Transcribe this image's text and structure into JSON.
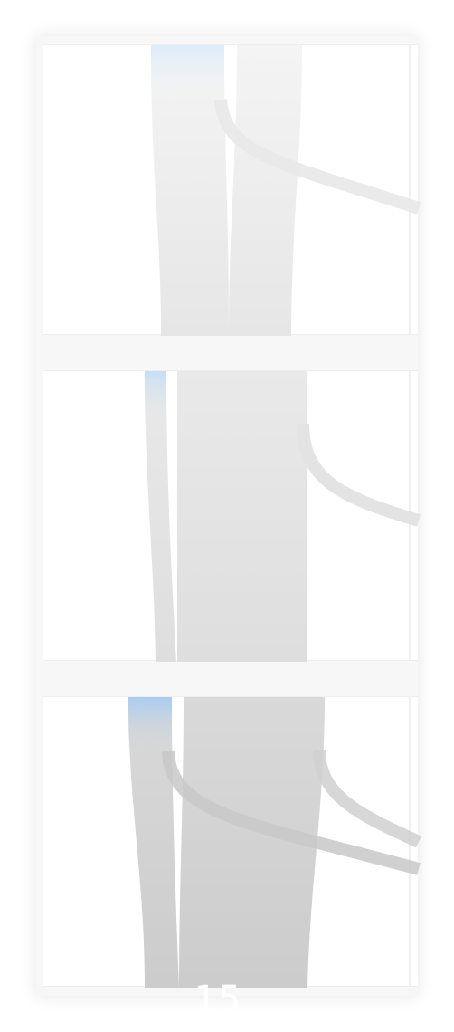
{
  "page": {
    "number": "15"
  },
  "colors": {
    "flow_grey": "#d4d4d4",
    "flow_light": "#efefef",
    "highlight_blue": "#b8d6f5",
    "panel_bg": "#ffffff",
    "card_bg": "#f7f7f7"
  },
  "panels": [
    {
      "name": "flow-panel-1",
      "tone": "light"
    },
    {
      "name": "flow-panel-2",
      "tone": "medium"
    },
    {
      "name": "flow-panel-3",
      "tone": "dark"
    }
  ]
}
